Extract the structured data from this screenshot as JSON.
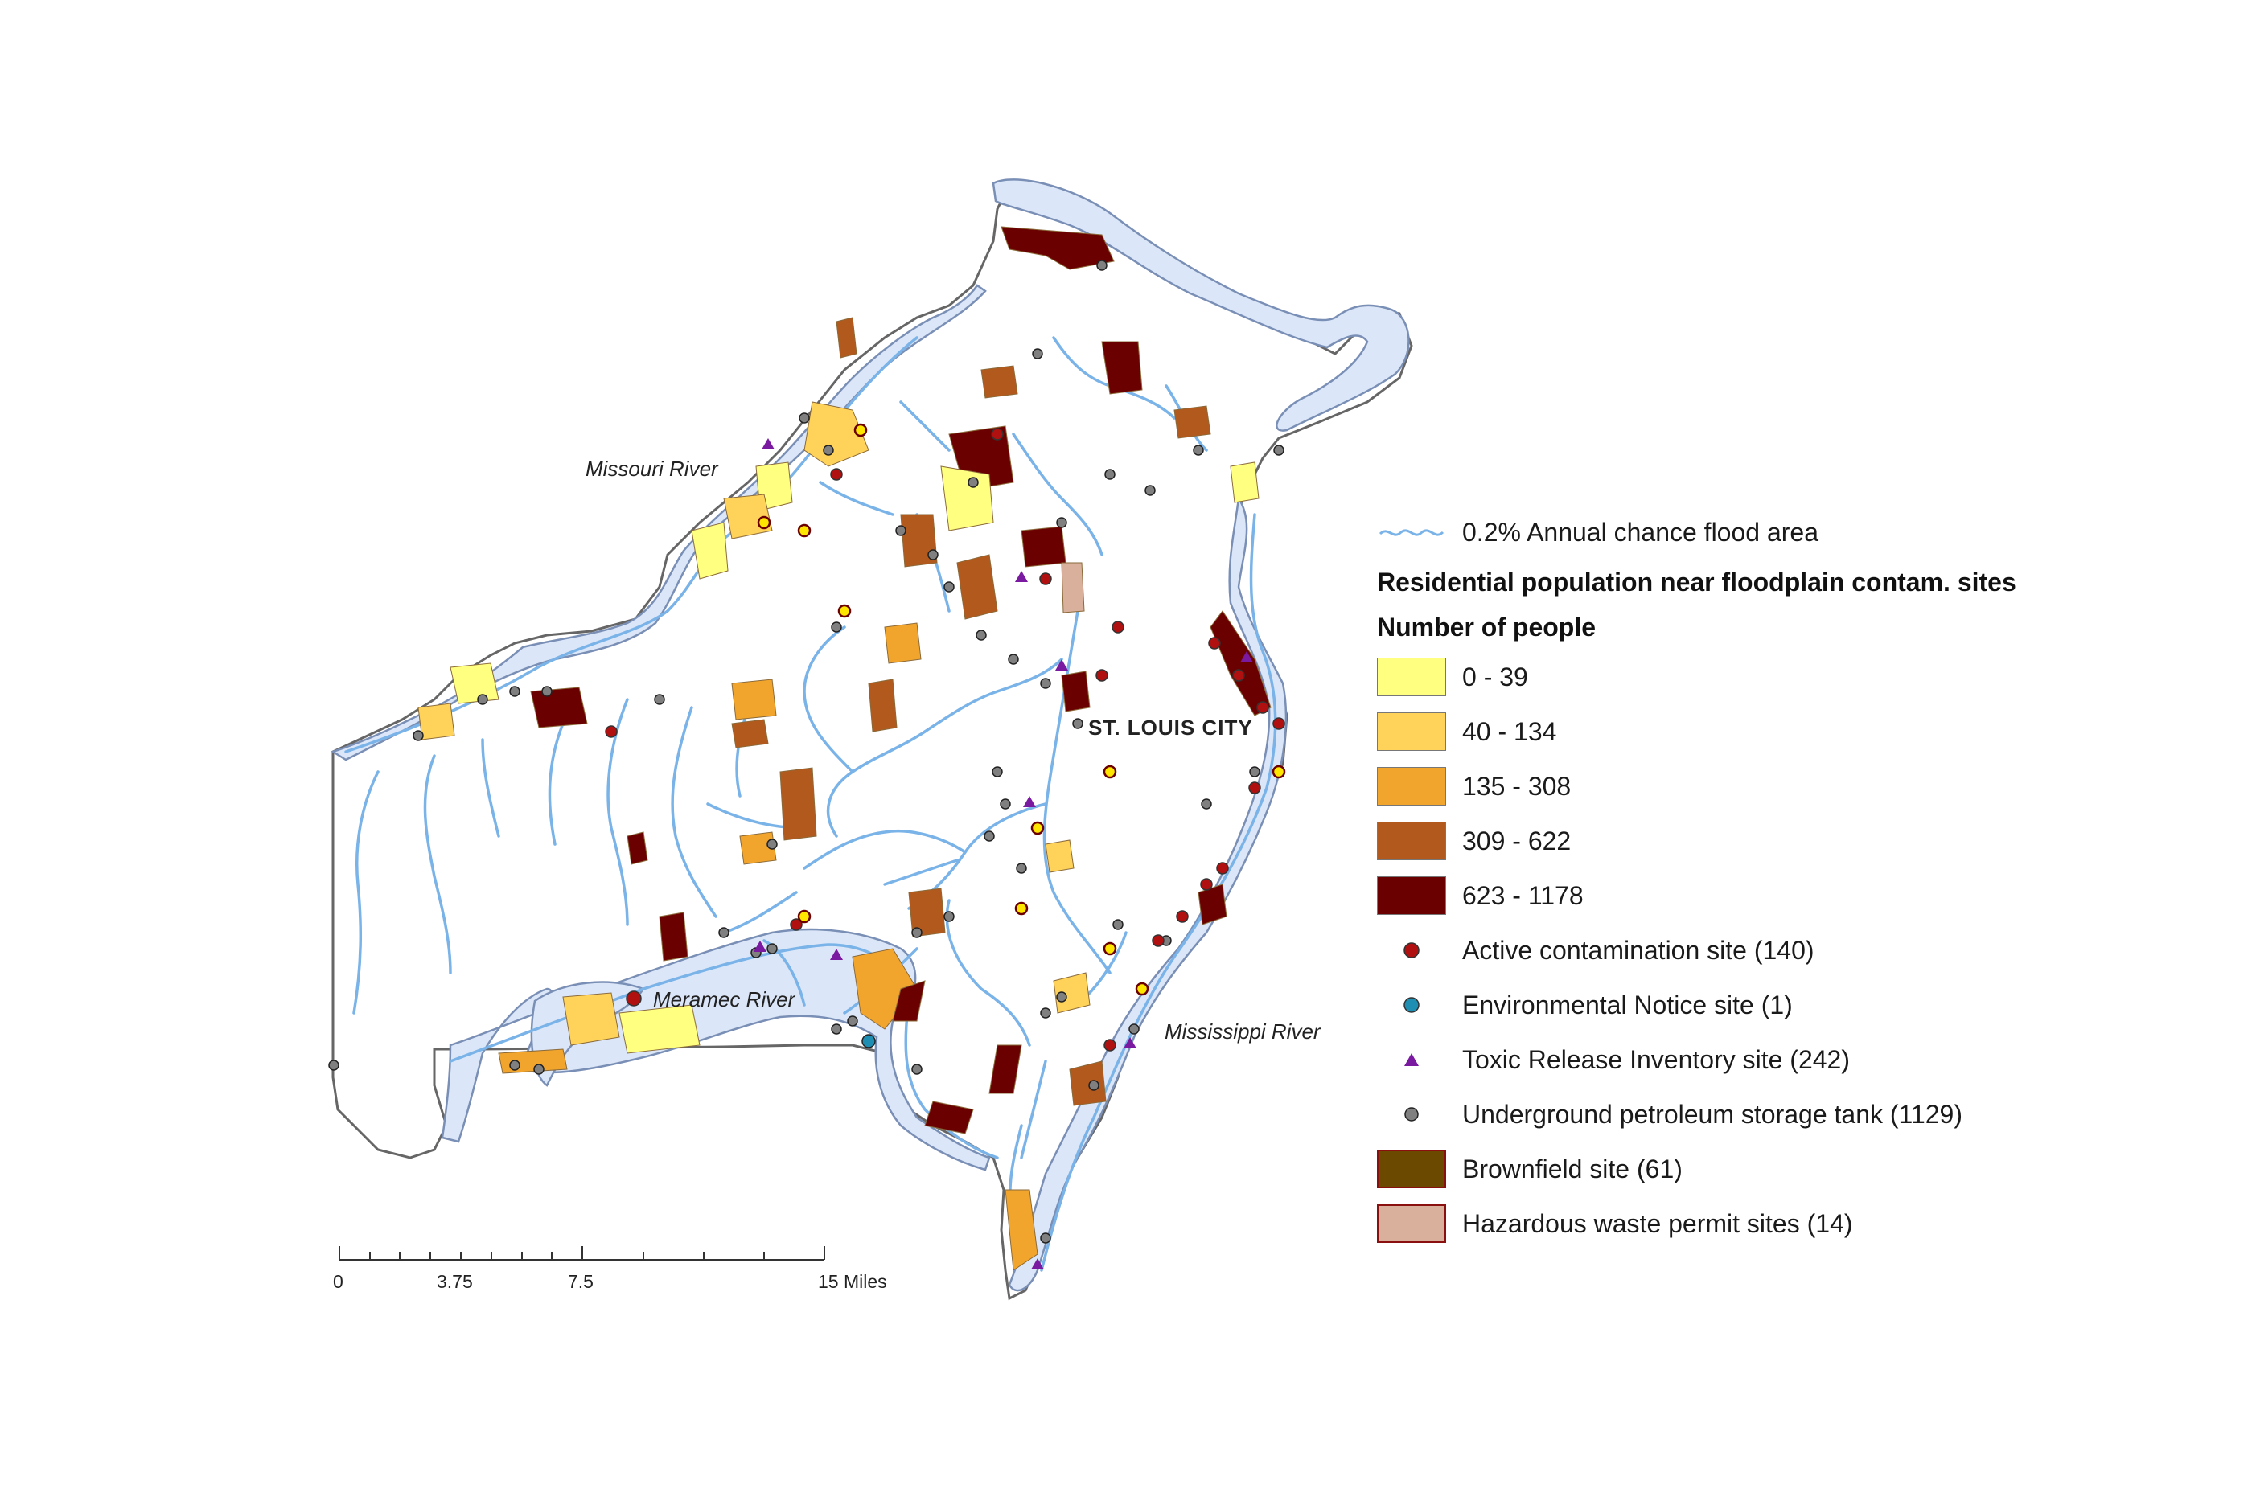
{
  "labels": {
    "missouri_river": "Missouri River",
    "meramec_river": "Meramec River",
    "mississippi_river": "Mississippi River",
    "city": "ST. LOUIS CITY"
  },
  "scale_bar": {
    "ticks": [
      "0",
      "3.75",
      "7.5",
      "15 Miles"
    ]
  },
  "legend": {
    "flood_area": "0.2% Annual chance flood area",
    "title": "Residential population near floodplain contam. sites",
    "subtitle": "Number of people",
    "classes": [
      {
        "label": "0 - 39",
        "color": "#ffff80"
      },
      {
        "label": "40 - 134",
        "color": "#ffd25a"
      },
      {
        "label": "135 - 308",
        "color": "#f2a52c"
      },
      {
        "label": "309 - 622",
        "color": "#b25a1e"
      },
      {
        "label": "623 - 1178",
        "color": "#6b0000"
      }
    ],
    "sites": {
      "active": "Active contamination site (140)",
      "env_notice": "Environmental Notice site (1)",
      "tri": "Toxic Release Inventory site (242)",
      "ust": "Underground petroleum storage tank (1129)",
      "brownfield": "Brownfield site (61)",
      "hazwaste": "Hazardous waste permit sites (14)"
    },
    "colors": {
      "flood": "#dbe6f8",
      "flood_edge": "#7a8fb5",
      "river": "#7ab3e8",
      "active": "#b01010",
      "env_notice": "#1e8fb3",
      "tri": "#7a1aa0",
      "ust": "#808080",
      "brownfield": "#6b4a00",
      "hazwaste": "#d9b09c"
    }
  }
}
